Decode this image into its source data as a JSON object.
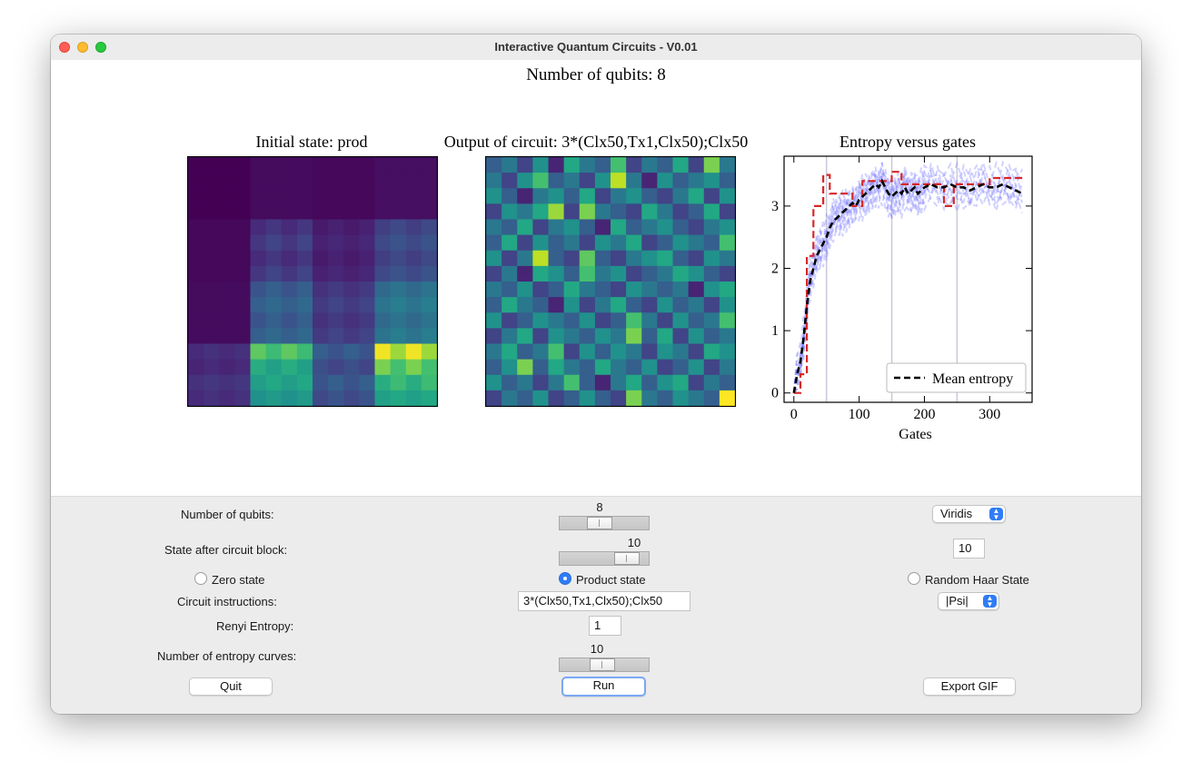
{
  "window": {
    "title": "Interactive Quantum Circuits - V0.01"
  },
  "figure": {
    "title": "Number of qubits: 8",
    "initial_title": "Initial state: prod",
    "output_title": "Output of circuit: 3*(Clx50,Tx1,Clx50);Clx50",
    "entropy_title": "Entropy versus gates"
  },
  "colors": {
    "viridis": [
      "#440154",
      "#482475",
      "#414487",
      "#355f8d",
      "#2a788e",
      "#21918c",
      "#22a884",
      "#44bf70",
      "#7ad151",
      "#bddf26",
      "#fde725"
    ],
    "mean": "#000000",
    "max_curve": "#d62728",
    "curves": "#6b6bff"
  },
  "heatmaps": {
    "initial": [
      [
        0,
        0,
        0,
        0,
        0.03,
        0.03,
        0.03,
        0.03,
        0.02,
        0.02,
        0.02,
        0.02,
        0.04,
        0.04,
        0.04,
        0.04
      ],
      [
        0,
        0,
        0,
        0,
        0.03,
        0.03,
        0.03,
        0.03,
        0.02,
        0.02,
        0.02,
        0.02,
        0.04,
        0.04,
        0.04,
        0.04
      ],
      [
        0,
        0,
        0,
        0,
        0.03,
        0.03,
        0.03,
        0.03,
        0.02,
        0.02,
        0.02,
        0.02,
        0.04,
        0.04,
        0.04,
        0.04
      ],
      [
        0,
        0,
        0,
        0,
        0.03,
        0.03,
        0.03,
        0.03,
        0.02,
        0.02,
        0.02,
        0.02,
        0.04,
        0.04,
        0.04,
        0.04
      ],
      [
        0.02,
        0.02,
        0.02,
        0.02,
        0.12,
        0.16,
        0.12,
        0.16,
        0.07,
        0.09,
        0.07,
        0.09,
        0.18,
        0.22,
        0.18,
        0.22
      ],
      [
        0.02,
        0.02,
        0.02,
        0.02,
        0.16,
        0.2,
        0.16,
        0.2,
        0.09,
        0.11,
        0.09,
        0.11,
        0.22,
        0.26,
        0.22,
        0.26
      ],
      [
        0.02,
        0.02,
        0.02,
        0.02,
        0.12,
        0.16,
        0.12,
        0.16,
        0.07,
        0.09,
        0.07,
        0.09,
        0.18,
        0.22,
        0.18,
        0.22
      ],
      [
        0.02,
        0.02,
        0.02,
        0.02,
        0.16,
        0.2,
        0.16,
        0.2,
        0.09,
        0.11,
        0.09,
        0.11,
        0.22,
        0.26,
        0.22,
        0.26
      ],
      [
        0.03,
        0.03,
        0.03,
        0.03,
        0.26,
        0.3,
        0.26,
        0.3,
        0.14,
        0.17,
        0.14,
        0.17,
        0.34,
        0.38,
        0.34,
        0.38
      ],
      [
        0.03,
        0.03,
        0.03,
        0.03,
        0.3,
        0.34,
        0.3,
        0.34,
        0.17,
        0.2,
        0.17,
        0.2,
        0.38,
        0.42,
        0.38,
        0.42
      ],
      [
        0.03,
        0.03,
        0.03,
        0.03,
        0.26,
        0.3,
        0.26,
        0.3,
        0.14,
        0.17,
        0.14,
        0.17,
        0.34,
        0.38,
        0.34,
        0.38
      ],
      [
        0.03,
        0.03,
        0.03,
        0.03,
        0.3,
        0.34,
        0.3,
        0.34,
        0.17,
        0.2,
        0.17,
        0.2,
        0.38,
        0.42,
        0.38,
        0.42
      ],
      [
        0.12,
        0.14,
        0.12,
        0.14,
        0.75,
        0.68,
        0.75,
        0.68,
        0.3,
        0.26,
        0.3,
        0.26,
        0.98,
        0.85,
        0.98,
        0.85
      ],
      [
        0.1,
        0.12,
        0.1,
        0.12,
        0.62,
        0.56,
        0.62,
        0.56,
        0.24,
        0.2,
        0.24,
        0.2,
        0.8,
        0.7,
        0.8,
        0.7
      ],
      [
        0.14,
        0.16,
        0.14,
        0.16,
        0.55,
        0.6,
        0.55,
        0.6,
        0.26,
        0.3,
        0.26,
        0.3,
        0.62,
        0.68,
        0.62,
        0.68
      ],
      [
        0.12,
        0.14,
        0.12,
        0.14,
        0.5,
        0.54,
        0.5,
        0.54,
        0.22,
        0.26,
        0.22,
        0.26,
        0.56,
        0.6,
        0.56,
        0.6
      ]
    ],
    "output": [
      [
        0.3,
        0.4,
        0.2,
        0.5,
        0.1,
        0.6,
        0.4,
        0.3,
        0.7,
        0.2,
        0.4,
        0.3,
        0.6,
        0.2,
        0.8,
        0.4
      ],
      [
        0.4,
        0.2,
        0.5,
        0.7,
        0.3,
        0.4,
        0.2,
        0.5,
        0.9,
        0.4,
        0.1,
        0.5,
        0.3,
        0.4,
        0.5,
        0.3
      ],
      [
        0.5,
        0.3,
        0.1,
        0.4,
        0.5,
        0.3,
        0.6,
        0.2,
        0.4,
        0.5,
        0.3,
        0.2,
        0.4,
        0.6,
        0.2,
        0.5
      ],
      [
        0.2,
        0.5,
        0.4,
        0.6,
        0.85,
        0.2,
        0.8,
        0.4,
        0.3,
        0.2,
        0.6,
        0.4,
        0.2,
        0.3,
        0.6,
        0.2
      ],
      [
        0.4,
        0.3,
        0.6,
        0.2,
        0.4,
        0.5,
        0.3,
        0.1,
        0.6,
        0.3,
        0.4,
        0.5,
        0.3,
        0.2,
        0.4,
        0.5
      ],
      [
        0.3,
        0.6,
        0.2,
        0.5,
        0.3,
        0.4,
        0.2,
        0.5,
        0.4,
        0.6,
        0.2,
        0.3,
        0.5,
        0.4,
        0.3,
        0.7
      ],
      [
        0.5,
        0.2,
        0.4,
        0.9,
        0.3,
        0.2,
        0.75,
        0.3,
        0.2,
        0.4,
        0.5,
        0.6,
        0.3,
        0.2,
        0.5,
        0.4
      ],
      [
        0.2,
        0.4,
        0.1,
        0.6,
        0.5,
        0.3,
        0.7,
        0.4,
        0.5,
        0.2,
        0.3,
        0.4,
        0.6,
        0.5,
        0.3,
        0.2
      ],
      [
        0.4,
        0.3,
        0.5,
        0.2,
        0.3,
        0.6,
        0.4,
        0.3,
        0.2,
        0.5,
        0.4,
        0.3,
        0.4,
        0.1,
        0.5,
        0.6
      ],
      [
        0.3,
        0.6,
        0.4,
        0.3,
        0.1,
        0.5,
        0.2,
        0.4,
        0.6,
        0.3,
        0.2,
        0.5,
        0.3,
        0.4,
        0.2,
        0.5
      ],
      [
        0.5,
        0.2,
        0.3,
        0.5,
        0.4,
        0.3,
        0.5,
        0.2,
        0.3,
        0.7,
        0.4,
        0.2,
        0.5,
        0.3,
        0.4,
        0.7
      ],
      [
        0.2,
        0.4,
        0.6,
        0.2,
        0.5,
        0.4,
        0.3,
        0.5,
        0.4,
        0.8,
        0.3,
        0.6,
        0.2,
        0.5,
        0.3,
        0.4
      ],
      [
        0.4,
        0.6,
        0.3,
        0.4,
        0.7,
        0.2,
        0.5,
        0.3,
        0.5,
        0.4,
        0.2,
        0.5,
        0.4,
        0.2,
        0.6,
        0.5
      ],
      [
        0.3,
        0.5,
        0.8,
        0.3,
        0.6,
        0.4,
        0.3,
        0.6,
        0.4,
        0.3,
        0.5,
        0.2,
        0.3,
        0.5,
        0.2,
        0.4
      ],
      [
        0.5,
        0.3,
        0.4,
        0.2,
        0.4,
        0.7,
        0.3,
        0.1,
        0.4,
        0.6,
        0.3,
        0.5,
        0.6,
        0.2,
        0.4,
        0.3
      ],
      [
        0.2,
        0.4,
        0.3,
        0.5,
        0.2,
        0.3,
        0.5,
        0.3,
        0.2,
        0.8,
        0.4,
        0.3,
        0.5,
        0.4,
        0.3,
        1.0
      ]
    ]
  },
  "chart_data": {
    "type": "line",
    "title": "Entropy versus gates",
    "xlabel": "Gates",
    "ylabel": "",
    "xlim": [
      -15,
      365
    ],
    "ylim": [
      -0.15,
      3.8
    ],
    "xticks": [
      0,
      100,
      200,
      300
    ],
    "yticks": [
      0,
      1,
      2,
      3
    ],
    "legend_placement": "bottom-right",
    "vlines": [
      50,
      150,
      250
    ],
    "series": [
      {
        "name": "Mean entropy",
        "style": "dashed-black",
        "x": [
          0,
          5,
          10,
          15,
          20,
          25,
          30,
          35,
          40,
          45,
          50,
          55,
          60,
          65,
          70,
          75,
          80,
          85,
          90,
          95,
          100,
          105,
          110,
          115,
          120,
          125,
          130,
          135,
          140,
          145,
          150,
          155,
          160,
          165,
          170,
          175,
          180,
          185,
          190,
          195,
          200,
          210,
          220,
          230,
          240,
          250,
          260,
          270,
          280,
          290,
          300,
          310,
          320,
          330,
          340,
          350
        ],
        "y": [
          0,
          0.3,
          0.5,
          0.9,
          1.4,
          1.8,
          2.0,
          2.2,
          2.3,
          2.4,
          2.5,
          2.65,
          2.75,
          2.8,
          2.85,
          2.9,
          2.95,
          3.0,
          3.05,
          3.0,
          3.1,
          3.15,
          3.2,
          3.25,
          3.3,
          3.35,
          3.3,
          3.4,
          3.3,
          3.2,
          3.15,
          3.2,
          3.25,
          3.2,
          3.3,
          3.2,
          3.25,
          3.3,
          3.2,
          3.25,
          3.3,
          3.35,
          3.3,
          3.3,
          3.35,
          3.3,
          3.3,
          3.25,
          3.3,
          3.35,
          3.3,
          3.3,
          3.35,
          3.3,
          3.25,
          3.2
        ]
      }
    ]
  },
  "controls": {
    "qubits_label": "Number of qubits:",
    "qubits_value": "8",
    "qubits_level": 0.43,
    "colormap": "Viridis",
    "state_label": "State after circuit block:",
    "state_value": "10",
    "state_level": 0.85,
    "state_entry": "10",
    "radio_zero": "Zero state",
    "radio_product": "Product state",
    "radio_haar": "Random Haar State",
    "instructions_label": "Circuit instructions:",
    "instructions_value": "3*(Clx50,Tx1,Clx50);Clx50",
    "psi_option": "|Psi|",
    "renyi_label": "Renyi Entropy:",
    "renyi_value": "1",
    "curves_label": "Number of entropy curves:",
    "curves_value": "10",
    "curves_level": 0.47,
    "quit": "Quit",
    "run": "Run",
    "export": "Export GIF"
  }
}
